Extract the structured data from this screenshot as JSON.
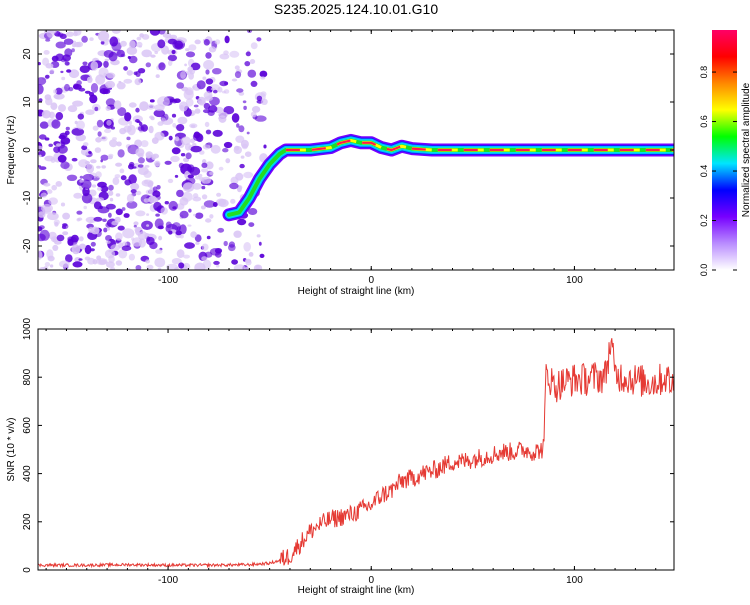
{
  "title": "S235.2025.124.10.01.G10",
  "colors": {
    "snr_line": "#e53a34",
    "scatter_dark": "#5a00d8",
    "scatter_light": "#d9c4f5",
    "axis": "#000000"
  },
  "colorbar": {
    "label": "Normalized spectral amplitude",
    "ticks": [
      "0.0",
      "0.2",
      "0.4",
      "0.6",
      "0.8"
    ],
    "tick_values": [
      0.0,
      0.2,
      0.4,
      0.6,
      0.8
    ],
    "range": [
      0,
      0.97
    ],
    "colormap": [
      "#ffffff",
      "#b98cff",
      "#7700ff",
      "#0000ff",
      "#00e5ff",
      "#00ff00",
      "#ffff00",
      "#ff8800",
      "#ff0000",
      "#ff0066"
    ]
  },
  "chart_data": [
    {
      "type": "heatmap",
      "title": "S235.2025.124.10.01.G10",
      "xlabel": "Height of straight line (km)",
      "ylabel": "Frequency (Hz)",
      "xlim": [
        -164,
        149
      ],
      "ylim": [
        -25,
        25
      ],
      "xticks": [
        -100,
        0,
        100
      ],
      "yticks": [
        -20,
        -10,
        0,
        10,
        20
      ],
      "grid": false,
      "noise_region_x": [
        -164,
        -52
      ],
      "signal_track": {
        "x": [
          -70,
          -65,
          -60,
          -55,
          -50,
          -45,
          -42,
          -38,
          -30,
          -20,
          -15,
          -10,
          -5,
          0,
          5,
          10,
          15,
          20,
          30,
          60,
          100,
          140,
          149
        ],
        "frequency": [
          -13.5,
          -13,
          -10,
          -6,
          -3,
          -0.8,
          0,
          0,
          0,
          0.5,
          1.5,
          2,
          1.5,
          1.5,
          0.5,
          0,
          0.8,
          0.3,
          0,
          0,
          0,
          0,
          0
        ]
      }
    },
    {
      "type": "line",
      "xlabel": "Height of straight line (km)",
      "ylabel": "SNR (10 * v/v)",
      "xlim": [
        -164,
        149
      ],
      "ylim": [
        0,
        1000
      ],
      "xticks": [
        -100,
        0,
        100
      ],
      "yticks": [
        0,
        200,
        400,
        600,
        800,
        1000
      ],
      "grid": false,
      "series": [
        {
          "x": [
            -164,
            -140,
            -120,
            -100,
            -80,
            -60,
            -50,
            -45,
            -40,
            -35,
            -30,
            -25,
            -20,
            -15,
            -10,
            -5,
            0,
            5,
            10,
            15,
            20,
            25,
            30,
            35,
            40,
            45,
            50,
            55,
            60,
            65,
            70,
            75,
            80,
            84,
            85,
            86,
            90,
            95,
            100,
            105,
            110,
            115,
            118,
            120,
            125,
            130,
            135,
            140,
            145,
            149
          ],
          "values": [
            20,
            20,
            22,
            20,
            20,
            22,
            28,
            40,
            60,
            110,
            160,
            190,
            210,
            220,
            230,
            250,
            270,
            310,
            330,
            370,
            380,
            400,
            410,
            430,
            450,
            450,
            460,
            470,
            480,
            490,
            490,
            500,
            490,
            500,
            520,
            830,
            760,
            780,
            790,
            790,
            800,
            800,
            950,
            810,
            800,
            790,
            780,
            780,
            800,
            760
          ]
        }
      ]
    }
  ]
}
